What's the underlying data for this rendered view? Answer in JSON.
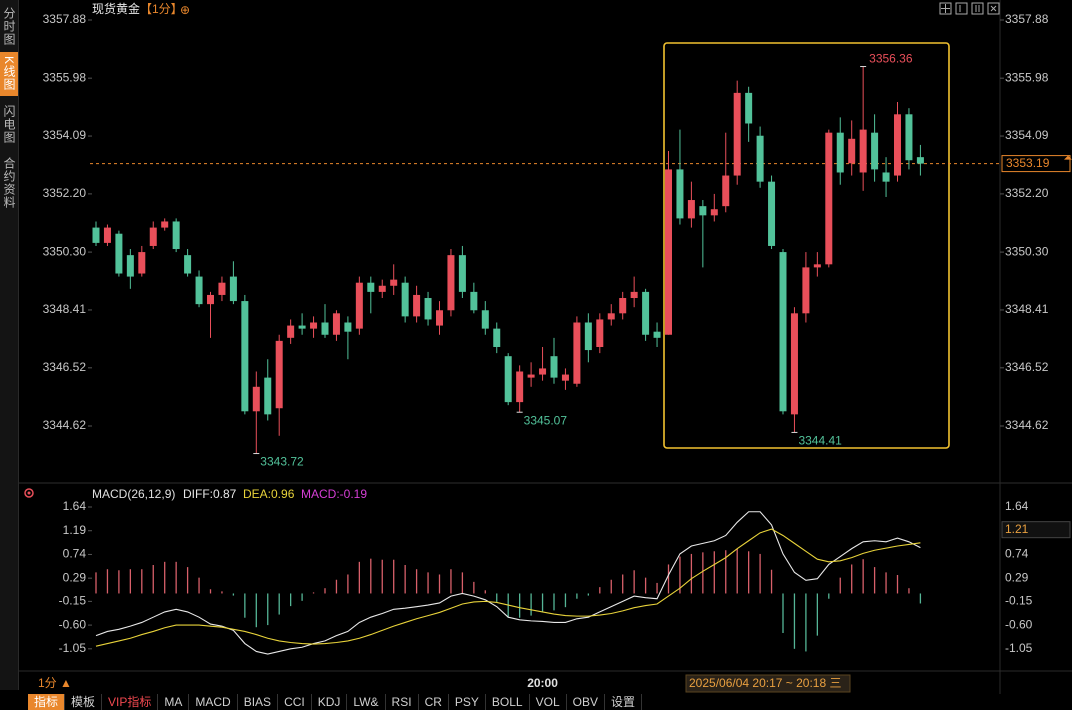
{
  "sidebar": {
    "tabs": [
      "分时图",
      "K线图",
      "闪电图",
      "合约资料"
    ]
  },
  "header": {
    "name": "现货黄金",
    "period": "【1分】",
    "icon": "⊕"
  },
  "chart_data": [
    {
      "type": "candlestick",
      "candles": [
        [
          3351.1,
          3351.3,
          3350.5,
          3350.6
        ],
        [
          3350.6,
          3351.2,
          3350.5,
          3351.1
        ],
        [
          3350.9,
          3351.0,
          3349.5,
          3349.6
        ],
        [
          3350.2,
          3350.4,
          3349.1,
          3349.5
        ],
        [
          3349.6,
          3350.5,
          3349.5,
          3350.3
        ],
        [
          3350.5,
          3351.3,
          3350.4,
          3351.1
        ],
        [
          3351.1,
          3351.4,
          3351.0,
          3351.3
        ],
        [
          3351.3,
          3351.4,
          3350.3,
          3350.4
        ],
        [
          3350.2,
          3350.4,
          3349.5,
          3349.6
        ],
        [
          3349.5,
          3349.7,
          3348.5,
          3348.6
        ],
        [
          3348.6,
          3349.0,
          3347.5,
          3348.9
        ],
        [
          3348.9,
          3349.5,
          3348.7,
          3349.3
        ],
        [
          3349.5,
          3350.0,
          3348.6,
          3348.7
        ],
        [
          3348.7,
          3348.9,
          3345.0,
          3345.1
        ],
        [
          3345.1,
          3346.4,
          3343.72,
          3345.9
        ],
        [
          3346.2,
          3346.8,
          3344.8,
          3345.0
        ],
        [
          3345.2,
          3347.6,
          3344.3,
          3347.4
        ],
        [
          3347.5,
          3348.1,
          3347.3,
          3347.9
        ],
        [
          3347.9,
          3348.3,
          3347.6,
          3347.8
        ],
        [
          3347.8,
          3348.2,
          3347.5,
          3348.0
        ],
        [
          3348.0,
          3348.6,
          3347.5,
          3347.6
        ],
        [
          3347.6,
          3348.4,
          3347.4,
          3348.3
        ],
        [
          3348.0,
          3348.2,
          3346.8,
          3347.7
        ],
        [
          3347.8,
          3349.5,
          3347.6,
          3349.3
        ],
        [
          3349.3,
          3349.5,
          3348.3,
          3349.0
        ],
        [
          3349.0,
          3349.4,
          3348.8,
          3349.2
        ],
        [
          3349.2,
          3349.9,
          3348.9,
          3349.4
        ],
        [
          3349.3,
          3349.5,
          3348.0,
          3348.2
        ],
        [
          3348.2,
          3349.2,
          3348.0,
          3348.9
        ],
        [
          3348.8,
          3349.0,
          3347.9,
          3348.1
        ],
        [
          3347.9,
          3348.7,
          3347.6,
          3348.4
        ],
        [
          3348.4,
          3350.4,
          3348.2,
          3350.2
        ],
        [
          3350.2,
          3350.5,
          3348.8,
          3349.0
        ],
        [
          3349.0,
          3349.3,
          3348.3,
          3348.4
        ],
        [
          3348.4,
          3348.7,
          3347.6,
          3347.8
        ],
        [
          3347.8,
          3348.0,
          3347.0,
          3347.2
        ],
        [
          3346.9,
          3347.0,
          3345.3,
          3345.4
        ],
        [
          3345.4,
          3346.6,
          3345.07,
          3346.4
        ],
        [
          3346.2,
          3346.7,
          3345.9,
          3346.3
        ],
        [
          3346.3,
          3347.2,
          3346.1,
          3346.5
        ],
        [
          3346.9,
          3347.5,
          3346.0,
          3346.2
        ],
        [
          3346.1,
          3346.5,
          3345.8,
          3346.3
        ],
        [
          3346.0,
          3348.2,
          3345.9,
          3348.0
        ],
        [
          3348.0,
          3348.3,
          3346.7,
          3347.1
        ],
        [
          3347.2,
          3348.3,
          3347.0,
          3348.1
        ],
        [
          3348.1,
          3348.6,
          3347.9,
          3348.3
        ],
        [
          3348.3,
          3349.0,
          3348.1,
          3348.8
        ],
        [
          3348.8,
          3349.5,
          3348.5,
          3349.0
        ],
        [
          3349.0,
          3349.1,
          3347.4,
          3347.6
        ],
        [
          3347.7,
          3348.0,
          3347.2,
          3347.5
        ],
        [
          3347.6,
          3353.6,
          3347.6,
          3353.0
        ],
        [
          3353.0,
          3354.3,
          3351.2,
          3351.4
        ],
        [
          3351.4,
          3352.6,
          3351.1,
          3352.0
        ],
        [
          3351.8,
          3352.0,
          3349.8,
          3351.5
        ],
        [
          3351.5,
          3352.2,
          3351.3,
          3351.7
        ],
        [
          3351.8,
          3354.2,
          3351.6,
          3352.8
        ],
        [
          3352.8,
          3355.9,
          3352.5,
          3355.5
        ],
        [
          3355.5,
          3355.7,
          3353.9,
          3354.5
        ],
        [
          3354.1,
          3354.4,
          3352.4,
          3352.6
        ],
        [
          3352.6,
          3352.8,
          3350.4,
          3350.5
        ],
        [
          3350.3,
          3350.4,
          3345.0,
          3345.1
        ],
        [
          3345.0,
          3348.5,
          3344.41,
          3348.3
        ],
        [
          3348.3,
          3350.3,
          3348.0,
          3349.8
        ],
        [
          3349.8,
          3350.3,
          3349.5,
          3349.9
        ],
        [
          3349.9,
          3354.3,
          3349.8,
          3354.2
        ],
        [
          3354.2,
          3354.7,
          3352.5,
          3352.9
        ],
        [
          3353.2,
          3354.6,
          3352.8,
          3354.0
        ],
        [
          3352.9,
          3356.36,
          3352.3,
          3354.3
        ],
        [
          3354.2,
          3354.8,
          3352.6,
          3353.0
        ],
        [
          3352.9,
          3353.4,
          3352.1,
          3352.6
        ],
        [
          3352.8,
          3355.2,
          3352.6,
          3354.8
        ],
        [
          3354.8,
          3355.0,
          3353.0,
          3353.3
        ],
        [
          3353.4,
          3353.8,
          3352.8,
          3353.19
        ]
      ],
      "categories": [
        null,
        null,
        null,
        null,
        null,
        null,
        null,
        null,
        null,
        null,
        null,
        null,
        null,
        null,
        null,
        null,
        null,
        null,
        null,
        null,
        null,
        null,
        null,
        null,
        null,
        null,
        null,
        null,
        null,
        null,
        null,
        null,
        null,
        null,
        null,
        null,
        null,
        null,
        null,
        "20:00",
        null,
        null,
        null,
        null,
        null,
        null,
        null,
        null,
        null,
        null,
        null,
        null,
        null,
        null,
        null,
        null,
        null,
        null,
        null,
        null,
        null,
        null,
        null,
        null,
        null,
        null,
        null,
        null,
        null,
        null,
        null,
        null,
        null
      ],
      "colors": {
        "up": "#e94f5a",
        "down": "#52c29a"
      },
      "ylim": [
        3343.15,
        3357.88
      ],
      "yticks": [
        3357.88,
        3355.98,
        3354.09,
        {
          "value": 3352.2,
          "label": "3352.20"
        },
        {
          "value": 3350.3,
          "label": "3350.30"
        },
        3348.41,
        3346.52,
        3344.62
      ],
      "last_price": 3353.19,
      "low_labels": [
        3343.72,
        3345.07,
        3344.41
      ],
      "high_labels": [
        3356.36
      ]
    },
    {
      "type": "macd",
      "title": "MACD(26,12,9)",
      "series": [
        {
          "name": "DIFF:0.87",
          "color": "#e8e8e8",
          "values": [
            -0.8,
            -0.72,
            -0.68,
            -0.62,
            -0.55,
            -0.45,
            -0.35,
            -0.3,
            -0.35,
            -0.45,
            -0.58,
            -0.62,
            -0.7,
            -0.95,
            -1.1,
            -1.15,
            -1.1,
            -1.05,
            -1.02,
            -0.95,
            -0.9,
            -0.8,
            -0.72,
            -0.55,
            -0.45,
            -0.38,
            -0.3,
            -0.28,
            -0.25,
            -0.22,
            -0.18,
            -0.05,
            0.0,
            -0.05,
            -0.12,
            -0.25,
            -0.45,
            -0.5,
            -0.52,
            -0.53,
            -0.55,
            -0.55,
            -0.48,
            -0.45,
            -0.35,
            -0.25,
            -0.15,
            -0.05,
            -0.08,
            -0.1,
            0.35,
            0.75,
            0.9,
            0.95,
            1.0,
            1.1,
            1.35,
            1.55,
            1.55,
            1.3,
            0.75,
            0.4,
            0.25,
            0.28,
            0.55,
            0.7,
            0.85,
            0.98,
            1.0,
            0.98,
            1.05,
            0.98,
            0.87
          ]
        },
        {
          "name": "DEA:0.96",
          "color": "#e8d33a",
          "values": [
            -1.0,
            -0.95,
            -0.9,
            -0.85,
            -0.78,
            -0.72,
            -0.65,
            -0.6,
            -0.6,
            -0.6,
            -0.62,
            -0.64,
            -0.68,
            -0.72,
            -0.78,
            -0.85,
            -0.9,
            -0.93,
            -0.95,
            -0.96,
            -0.95,
            -0.93,
            -0.9,
            -0.85,
            -0.78,
            -0.7,
            -0.62,
            -0.55,
            -0.48,
            -0.42,
            -0.36,
            -0.28,
            -0.2,
            -0.16,
            -0.15,
            -0.17,
            -0.22,
            -0.27,
            -0.31,
            -0.35,
            -0.39,
            -0.42,
            -0.43,
            -0.43,
            -0.41,
            -0.38,
            -0.33,
            -0.27,
            -0.23,
            -0.2,
            -0.05,
            0.1,
            0.28,
            0.42,
            0.55,
            0.68,
            0.85,
            1.0,
            1.15,
            1.22,
            1.1,
            0.95,
            0.8,
            0.65,
            0.6,
            0.62,
            0.68,
            0.76,
            0.82,
            0.86,
            0.9,
            0.93,
            0.96
          ]
        }
      ],
      "histogram": {
        "name": "MACD:-0.19",
        "color": "#d63fd6",
        "up_color": "#d8606a",
        "down_color": "#55b596",
        "values": [
          0.4,
          0.46,
          0.44,
          0.46,
          0.46,
          0.54,
          0.6,
          0.6,
          0.5,
          0.3,
          0.08,
          0.04,
          -0.04,
          -0.46,
          -0.64,
          -0.6,
          -0.4,
          -0.24,
          -0.14,
          0.02,
          0.1,
          0.26,
          0.36,
          0.6,
          0.66,
          0.64,
          0.64,
          0.54,
          0.46,
          0.4,
          0.36,
          0.46,
          0.4,
          0.22,
          0.06,
          -0.16,
          -0.46,
          -0.46,
          -0.42,
          -0.36,
          -0.32,
          -0.26,
          -0.1,
          -0.04,
          0.12,
          0.26,
          0.36,
          0.44,
          0.3,
          0.2,
          0.55,
          0.7,
          0.75,
          0.78,
          0.8,
          0.82,
          0.85,
          0.8,
          0.75,
          0.45,
          -0.75,
          -1.05,
          -1.1,
          -0.8,
          -0.1,
          0.3,
          0.55,
          0.65,
          0.5,
          0.4,
          0.35,
          0.1,
          -0.19
        ]
      },
      "ylim": [
        -1.3,
        1.64
      ],
      "yticks": [
        1.64,
        1.19,
        0.74,
        0.29,
        -0.15,
        {
          "value": -0.6,
          "label": "-0.60"
        },
        -1.05
      ],
      "marker": 1.21
    }
  ],
  "footer": {
    "period": "1分 ▲",
    "time_range": "2025/06/04 20:17 ~ 20:18 三",
    "toolbar": [
      "指标",
      "模板",
      "VIP指标",
      "MA",
      "MACD",
      "BIAS",
      "CCI",
      "KDJ",
      "LW&",
      "RSI",
      "CR",
      "PSY",
      "BOLL",
      "VOL",
      "OBV",
      "设置"
    ]
  }
}
